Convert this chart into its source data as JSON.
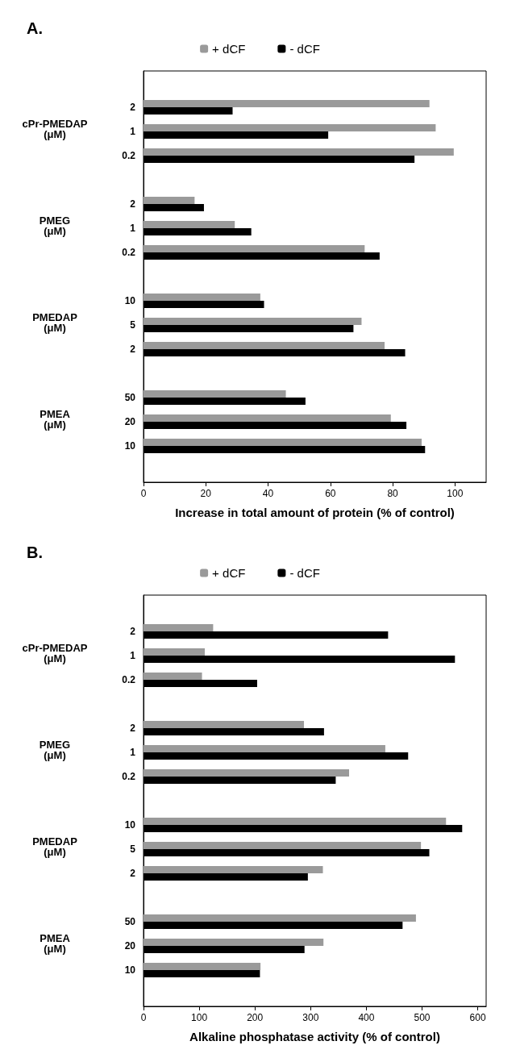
{
  "chart_data": [
    {
      "type": "bar",
      "orientation": "horizontal",
      "title": "A.",
      "xlabel": "Increase in total amount of protein (% of control)",
      "categories": [
        null,
        "2",
        "1",
        "0.2",
        null,
        "2",
        "1",
        "0.2",
        null,
        "10",
        "5",
        "2",
        null,
        "50",
        "20",
        "10",
        null
      ],
      "series": [
        {
          "name": "+ dCF",
          "color": "#9a9a9a",
          "values": [
            null,
            91.8,
            93.8,
            99.6,
            null,
            16.4,
            29.3,
            71.0,
            null,
            37.5,
            70.0,
            77.4,
            null,
            45.7,
            79.4,
            89.3,
            null
          ]
        },
        {
          "name": "- dCF",
          "color": "#000000",
          "values": [
            null,
            28.6,
            59.3,
            87.0,
            null,
            19.4,
            34.6,
            75.8,
            null,
            38.7,
            67.4,
            84.0,
            null,
            52.0,
            84.4,
            90.4,
            null
          ]
        }
      ],
      "annotations": [
        "cPr-PMEDAP\n(μM)",
        "PMEG\n(μM)",
        "PMEDAP\n(μM)",
        "PMEA\n(μM)"
      ],
      "xlim": [
        0,
        110
      ],
      "xticks": [
        0,
        20,
        40,
        60,
        80,
        100
      ],
      "grid": false,
      "legend": "top"
    },
    {
      "type": "bar",
      "orientation": "horizontal",
      "title": "B.",
      "xlabel": "Alkaline phosphatase activity (% of control)",
      "categories": [
        null,
        "2",
        "1",
        "0.2",
        null,
        "2",
        "1",
        "0.2",
        null,
        "10",
        "5",
        "2",
        null,
        "50",
        "20",
        "10",
        null
      ],
      "series": [
        {
          "name": "+ dCF",
          "color": "#9a9a9a",
          "values": [
            null,
            125,
            110,
            105,
            null,
            288,
            434,
            369,
            null,
            543,
            498,
            322,
            null,
            489,
            323,
            210,
            null
          ]
        },
        {
          "name": "- dCF",
          "color": "#000000",
          "values": [
            null,
            439,
            559,
            204,
            null,
            324,
            475,
            345,
            null,
            572,
            513,
            295,
            null,
            465,
            289,
            209,
            null
          ]
        }
      ],
      "annotations": [
        "cPr-PMEDAP\n(μM)",
        "PMEG\n(μM)",
        "PMEDAP\n(μM)",
        "PMEA\n(μM)"
      ],
      "xlim": [
        0,
        615
      ],
      "xticks": [
        0,
        100,
        200,
        300,
        400,
        500,
        600
      ],
      "grid": false,
      "legend": "top"
    }
  ]
}
